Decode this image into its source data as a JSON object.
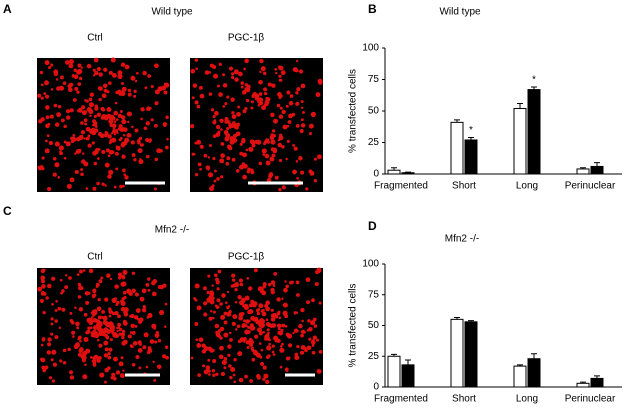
{
  "panel_a": {
    "letter": "A",
    "title": "Wild type",
    "images": [
      {
        "label": "Ctrl"
      },
      {
        "label": "PGC-1β"
      }
    ]
  },
  "panel_c": {
    "letter": "C",
    "title": "Mfn2 -/-",
    "images": [
      {
        "label": "Ctrl"
      },
      {
        "label": "PGC-1β"
      }
    ]
  },
  "chart_data": [
    {
      "type": "bar",
      "letter": "B",
      "title": "Wild type",
      "y_label": "% transfected cells",
      "categories": [
        "Fragmented",
        "Short",
        "Long",
        "Perinuclear"
      ],
      "series": [
        {
          "color": "#ffffff",
          "values": [
            3,
            41,
            52,
            4
          ],
          "errors": [
            2,
            2,
            4,
            1
          ]
        },
        {
          "color": "#000000",
          "values": [
            1,
            27,
            67,
            6
          ],
          "errors": [
            0.5,
            2,
            2,
            3
          ]
        }
      ],
      "annotations": [
        {
          "text": "*",
          "series": 1,
          "category": 1
        },
        {
          "text": "*",
          "series": 1,
          "category": 2
        }
      ],
      "ylim": [
        0,
        100
      ],
      "yticks": [
        0,
        25,
        50,
        75,
        100
      ]
    },
    {
      "type": "bar",
      "letter": "D",
      "title": "Mfn2 -/-",
      "y_label": "% transfected cells",
      "categories": [
        "Fragmented",
        "Short",
        "Long",
        "Perinuclear"
      ],
      "series": [
        {
          "color": "#ffffff",
          "values": [
            25,
            55,
            17,
            3
          ],
          "errors": [
            1.5,
            1.5,
            1,
            1
          ]
        },
        {
          "color": "#000000",
          "values": [
            18,
            53,
            23,
            7
          ],
          "errors": [
            4,
            1,
            4,
            2
          ]
        }
      ],
      "ylim": [
        0,
        100
      ],
      "yticks": [
        0,
        25,
        50,
        75,
        100
      ]
    }
  ]
}
